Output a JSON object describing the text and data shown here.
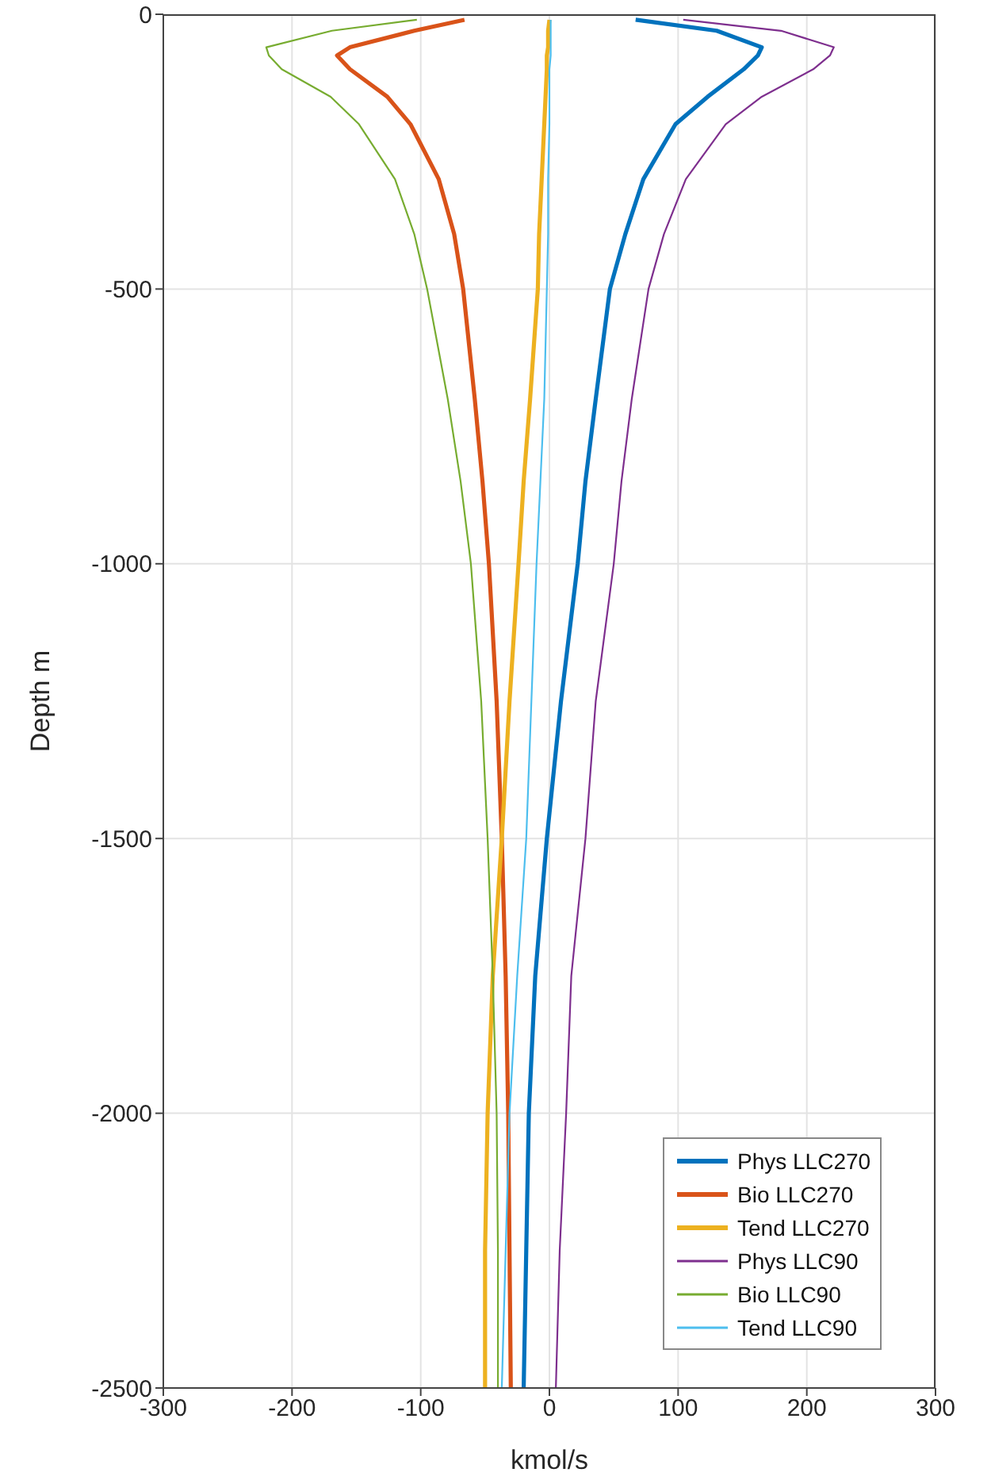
{
  "chart_data": {
    "type": "line",
    "orientation": "horizontal",
    "xlabel": "kmol/s",
    "ylabel": "Depth m",
    "x": [
      -10,
      -30,
      -60,
      -75,
      -100,
      -150,
      -200,
      -300,
      -400,
      -500,
      -700,
      -850,
      -1000,
      -1250,
      -1500,
      -1750,
      -2000,
      -2250,
      -2500
    ],
    "series": [
      {
        "name": "Phys LLC270",
        "color": "#0072bd",
        "values": [
          67,
          130,
          165,
          162,
          151,
          123,
          98,
          73,
          59,
          47,
          36,
          28,
          22,
          9,
          -2,
          -11,
          -16,
          -18,
          -20
        ]
      },
      {
        "name": "Bio LLC270",
        "color": "#d95319",
        "values": [
          -66,
          -105,
          -155,
          -165,
          -155,
          -126,
          -108,
          -86,
          -74,
          -67,
          -58,
          -52,
          -47,
          -41,
          -37,
          -34,
          -32,
          -31,
          -30
        ]
      },
      {
        "name": "Tend LLC270",
        "color": "#edb120",
        "values": [
          0,
          -1,
          -1,
          -2,
          -2,
          -3,
          -4,
          -6,
          -8,
          -9,
          -15,
          -20,
          -24,
          -31,
          -37,
          -44,
          -48,
          -50,
          -50
        ]
      },
      {
        "name": "Phys LLC90",
        "color": "#7e2f8e",
        "values": [
          104,
          180,
          221,
          218,
          205,
          165,
          137,
          106,
          89,
          77,
          64,
          56,
          50,
          36,
          28,
          17,
          13,
          8,
          5
        ]
      },
      {
        "name": "Bio LLC90",
        "color": "#77ac30",
        "values": [
          -103,
          -169,
          -220,
          -218,
          -208,
          -170,
          -148,
          -120,
          -105,
          -95,
          -79,
          -69,
          -61,
          -53,
          -48,
          -44,
          -41,
          -40,
          -40
        ]
      },
      {
        "name": "Tend LLC90",
        "color": "#4dbeee",
        "values": [
          1,
          1,
          1,
          1,
          0,
          0,
          0,
          -1,
          -1,
          -2,
          -4,
          -7,
          -10,
          -14,
          -18,
          -25,
          -31,
          -34,
          -37
        ]
      }
    ],
    "xlim": [
      -300,
      300
    ],
    "xticks": [
      -300,
      -200,
      -100,
      0,
      100,
      200,
      300
    ],
    "ylim": [
      -2500,
      0
    ],
    "yticks": [
      -2500,
      -2000,
      -1500,
      -1000,
      -500,
      0
    ],
    "grid": true,
    "legend": "bottom right",
    "marker": "none",
    "line_style": "solid"
  }
}
